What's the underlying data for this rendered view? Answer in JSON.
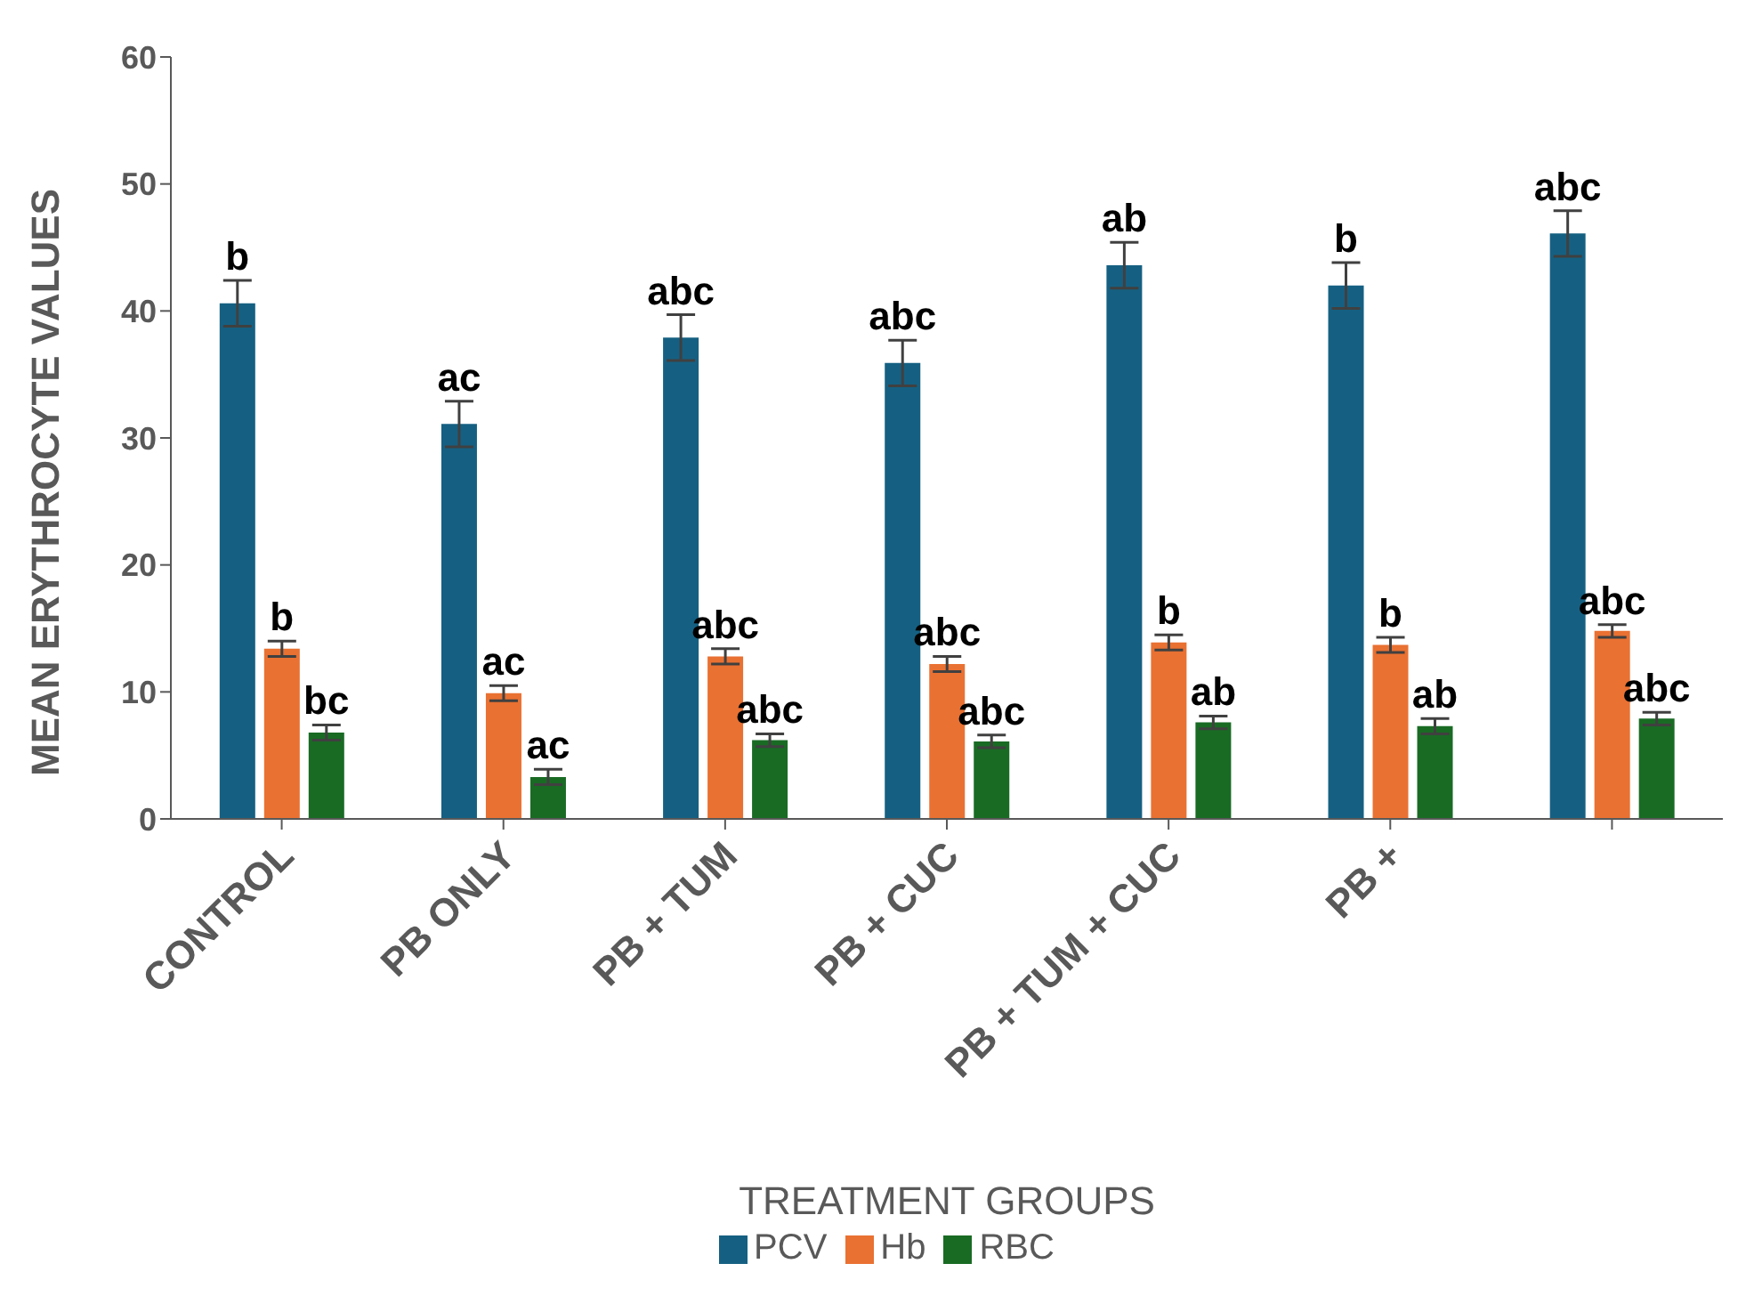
{
  "chart_data": {
    "type": "bar",
    "xlabel": "TREATMENT GROUPS",
    "ylabel": "MEAN ERYTHROCYTE VALUES",
    "categories": [
      "CONTROL",
      "PB ONLY",
      "PB + TUM",
      "PB + CUC",
      "PB + TUM + CUC",
      "PB +",
      null
    ],
    "series": [
      {
        "name": "PCV",
        "color": "#156082",
        "values": [
          40.6,
          31.1,
          37.9,
          35.9,
          43.6,
          42.0,
          46.1
        ],
        "errors": [
          1.8,
          1.8,
          1.8,
          1.8,
          1.8,
          1.8,
          1.8
        ],
        "value_labels": [
          "b",
          "ac",
          "abc",
          "abc",
          "ab",
          "b",
          "abc"
        ]
      },
      {
        "name": "Hb",
        "color": "#e97132",
        "values": [
          13.4,
          9.9,
          12.8,
          12.2,
          13.9,
          13.7,
          14.8
        ],
        "errors": [
          0.6,
          0.6,
          0.6,
          0.6,
          0.6,
          0.6,
          0.5
        ],
        "value_labels": [
          "b",
          "ac",
          "abc",
          "abc",
          "b",
          "b",
          "abc"
        ]
      },
      {
        "name": "RBC",
        "color": "#196b24",
        "values": [
          6.8,
          3.3,
          6.2,
          6.1,
          7.6,
          7.3,
          7.9
        ],
        "errors": [
          0.6,
          0.6,
          0.5,
          0.5,
          0.5,
          0.6,
          0.5
        ],
        "value_labels": [
          "bc",
          "ac",
          "abc",
          "abc",
          "ab",
          "ab",
          "abc"
        ]
      }
    ],
    "ylim": [
      0,
      60
    ],
    "yticks": [
      0,
      10,
      20,
      30,
      40,
      50,
      60
    ],
    "legend": "bottom"
  }
}
